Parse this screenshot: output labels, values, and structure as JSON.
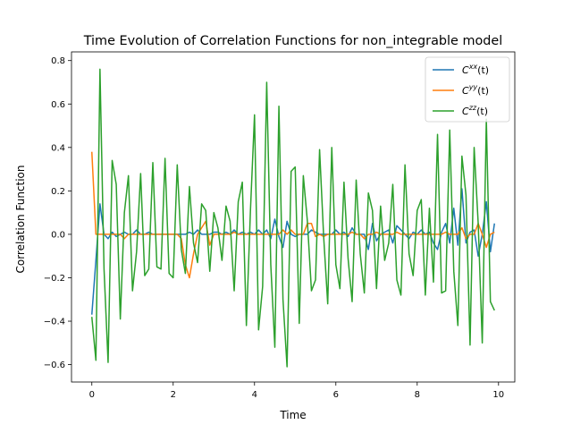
{
  "chart_data": {
    "type": "line",
    "title": "Time Evolution of Correlation Functions for non_integrable model",
    "xlabel": "Time",
    "ylabel": "Correlation Function",
    "xlim": [
      -0.5,
      10.4
    ],
    "ylim": [
      -0.68,
      0.84
    ],
    "xticks": [
      0,
      2,
      4,
      6,
      8,
      10
    ],
    "xtick_labels": [
      "0",
      "2",
      "4",
      "6",
      "8",
      "10"
    ],
    "yticks": [
      -0.6,
      -0.4,
      -0.2,
      0.0,
      0.2,
      0.4,
      0.6,
      0.8
    ],
    "ytick_labels": [
      "−0.6",
      "−0.4",
      "−0.2",
      "0.0",
      "0.2",
      "0.4",
      "0.6",
      "0.8"
    ],
    "grid": false,
    "legend_position": "top-right",
    "x": [
      0.0,
      0.1,
      0.2,
      0.3,
      0.4,
      0.5,
      0.6,
      0.7,
      0.8,
      0.9,
      1.0,
      1.1,
      1.2,
      1.3,
      1.4,
      1.5,
      1.6,
      1.7,
      1.8,
      1.9,
      2.0,
      2.1,
      2.2,
      2.3,
      2.4,
      2.5,
      2.6,
      2.7,
      2.8,
      2.9,
      3.0,
      3.1,
      3.2,
      3.3,
      3.4,
      3.5,
      3.6,
      3.7,
      3.8,
      3.9,
      4.0,
      4.1,
      4.2,
      4.3,
      4.4,
      4.5,
      4.6,
      4.7,
      4.8,
      4.9,
      5.0,
      5.1,
      5.2,
      5.3,
      5.4,
      5.5,
      5.6,
      5.7,
      5.8,
      5.9,
      6.0,
      6.1,
      6.2,
      6.3,
      6.4,
      6.5,
      6.6,
      6.7,
      6.8,
      6.9,
      7.0,
      7.1,
      7.2,
      7.3,
      7.4,
      7.5,
      7.6,
      7.7,
      7.8,
      7.9,
      8.0,
      8.1,
      8.2,
      8.3,
      8.4,
      8.5,
      8.6,
      8.7,
      8.8,
      8.9,
      9.0,
      9.1,
      9.2,
      9.3,
      9.4,
      9.5,
      9.6,
      9.7,
      9.8,
      9.9
    ],
    "series": [
      {
        "name": "C^{xx}(t)",
        "label_base": "C",
        "label_sup": "xx",
        "label_tail": "(t)",
        "color": "#1f77b4",
        "values": [
          -0.37,
          -0.12,
          0.14,
          0.0,
          -0.02,
          0.01,
          -0.01,
          0.0,
          0.01,
          0.0,
          0.0,
          0.02,
          0.0,
          0.0,
          0.01,
          0.0,
          0.0,
          0.0,
          0.0,
          0.0,
          0.0,
          0.0,
          0.0,
          0.0,
          0.01,
          0.0,
          0.02,
          0.0,
          0.0,
          0.0,
          0.01,
          0.01,
          0.0,
          0.01,
          0.0,
          0.02,
          0.0,
          0.01,
          0.0,
          0.01,
          0.0,
          0.02,
          0.0,
          0.02,
          -0.02,
          0.07,
          -0.01,
          -0.06,
          0.06,
          0.0,
          -0.01,
          0.0,
          0.0,
          0.0,
          0.02,
          0.01,
          0.0,
          0.0,
          0.0,
          0.0,
          0.02,
          0.0,
          0.01,
          -0.01,
          0.03,
          0.0,
          0.0,
          0.0,
          -0.07,
          0.05,
          -0.03,
          0.0,
          0.01,
          0.02,
          -0.04,
          0.04,
          0.02,
          0.0,
          -0.02,
          0.01,
          0.0,
          0.02,
          0.0,
          0.01,
          -0.04,
          -0.07,
          0.01,
          0.05,
          -0.04,
          0.12,
          -0.05,
          0.21,
          -0.04,
          0.01,
          0.02,
          -0.1,
          0.0,
          0.15,
          -0.08,
          0.05
        ]
      },
      {
        "name": "C^{yy}(t)",
        "label_base": "C",
        "label_sup": "yy",
        "label_tail": "(t)",
        "color": "#ff7f0e",
        "values": [
          0.38,
          0.0,
          0.0,
          0.0,
          0.0,
          0.0,
          0.0,
          0.0,
          -0.02,
          0.0,
          0.0,
          0.0,
          0.0,
          0.0,
          0.0,
          0.0,
          0.0,
          0.0,
          0.0,
          0.0,
          0.0,
          0.0,
          -0.02,
          -0.14,
          -0.2,
          -0.09,
          0.0,
          0.03,
          0.06,
          -0.05,
          0.0,
          0.0,
          0.0,
          0.0,
          0.0,
          0.01,
          0.0,
          0.0,
          0.0,
          0.0,
          0.0,
          0.0,
          0.0,
          0.0,
          0.0,
          0.0,
          0.0,
          0.02,
          0.0,
          0.02,
          0.0,
          0.0,
          0.0,
          0.05,
          0.05,
          -0.01,
          0.0,
          -0.01,
          0.0,
          0.0,
          0.0,
          0.0,
          0.0,
          0.0,
          0.01,
          0.0,
          0.0,
          -0.02,
          0.0,
          0.0,
          0.01,
          0.0,
          0.0,
          0.0,
          0.0,
          0.01,
          0.0,
          0.0,
          0.0,
          0.0,
          0.0,
          0.0,
          0.0,
          0.0,
          0.0,
          0.0,
          0.0,
          0.01,
          0.0,
          0.0,
          0.0,
          0.03,
          -0.02,
          0.0,
          0.0,
          0.05,
          0.0,
          -0.06,
          0.0,
          0.01
        ]
      },
      {
        "name": "C^{zz}(t)",
        "label_base": "C",
        "label_sup": "zz",
        "label_tail": "(t)",
        "color": "#2ca02c",
        "values": [
          -0.38,
          -0.58,
          0.76,
          -0.16,
          -0.59,
          0.34,
          0.23,
          -0.39,
          0.1,
          0.27,
          -0.26,
          -0.08,
          0.28,
          -0.19,
          -0.16,
          0.33,
          -0.15,
          -0.16,
          0.35,
          -0.18,
          -0.2,
          0.32,
          -0.07,
          -0.18,
          0.22,
          -0.04,
          -0.13,
          0.14,
          0.11,
          -0.17,
          0.1,
          0.03,
          -0.12,
          0.13,
          0.06,
          -0.26,
          0.15,
          0.24,
          -0.42,
          0.11,
          0.55,
          -0.44,
          -0.24,
          0.7,
          -0.14,
          -0.52,
          0.59,
          -0.3,
          -0.61,
          0.29,
          0.31,
          -0.41,
          0.27,
          0.06,
          -0.26,
          -0.21,
          0.39,
          -0.01,
          -0.32,
          0.4,
          -0.14,
          -0.25,
          0.24,
          -0.11,
          -0.31,
          0.25,
          -0.09,
          -0.27,
          0.19,
          0.11,
          -0.25,
          0.13,
          -0.12,
          -0.04,
          0.23,
          -0.21,
          -0.28,
          0.32,
          -0.09,
          -0.19,
          0.11,
          0.16,
          -0.28,
          0.12,
          -0.22,
          0.46,
          -0.27,
          -0.26,
          0.48,
          -0.17,
          -0.42,
          0.36,
          0.18,
          -0.51,
          0.4,
          0.05,
          -0.5,
          0.53,
          -0.31,
          -0.35
        ]
      }
    ]
  }
}
